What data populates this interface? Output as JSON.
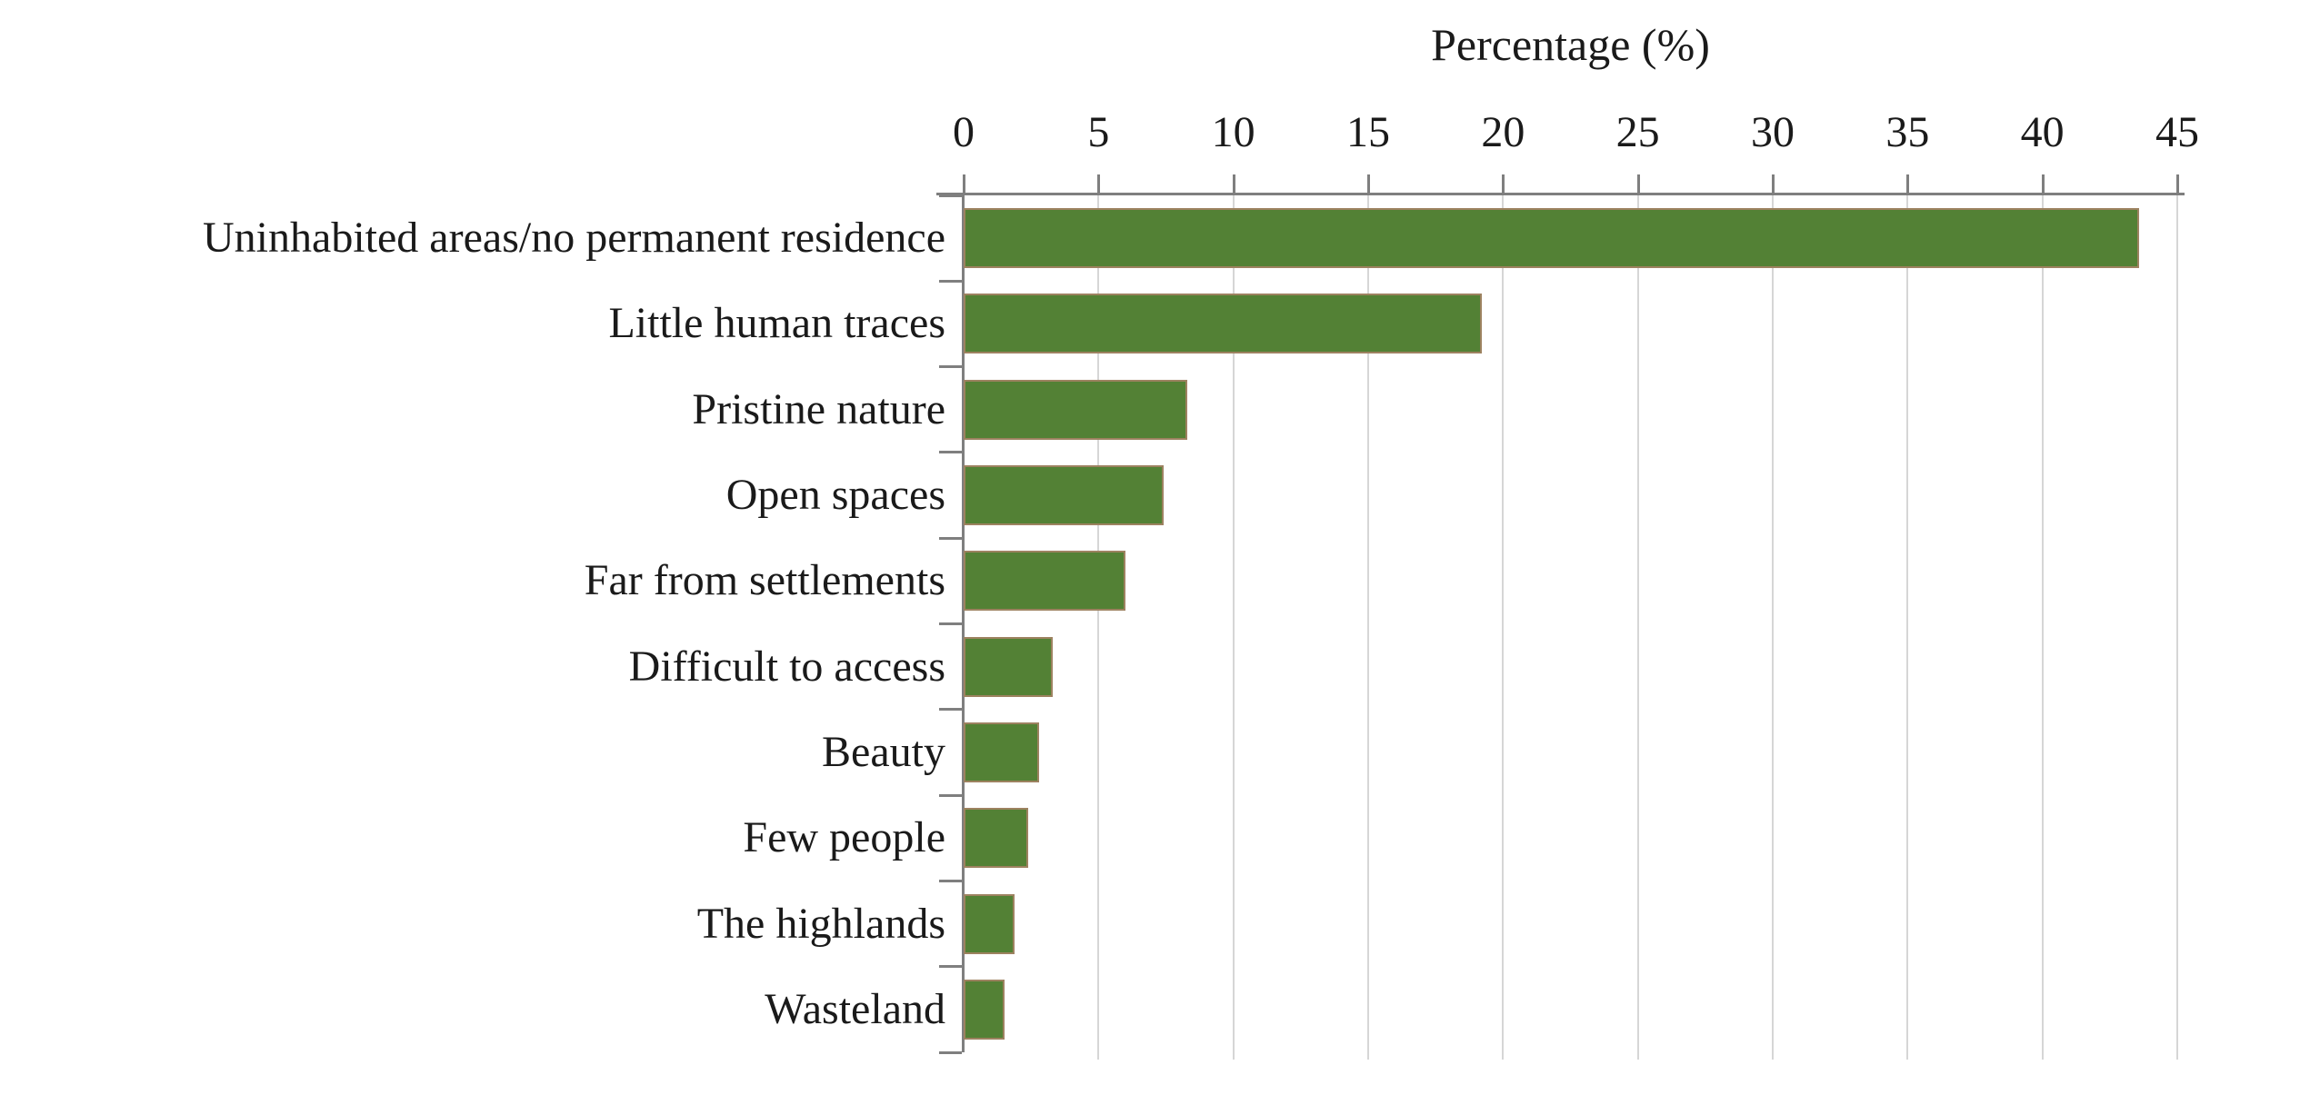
{
  "chart_data": {
    "type": "bar",
    "orientation": "horizontal",
    "title": "Percentage (%)",
    "xlabel": "Percentage (%)",
    "ylabel": "",
    "categories": [
      "Uninhabited areas/no permanent residence",
      "Little human traces",
      "Pristine nature",
      "Open spaces",
      "Far from settlements",
      "Difficult to access",
      "Beauty",
      "Few people",
      "The highlands",
      "Wasteland"
    ],
    "values": [
      43.6,
      19.2,
      8.3,
      7.4,
      6.0,
      3.3,
      2.8,
      2.4,
      1.9,
      1.5
    ],
    "xlim": [
      0,
      45
    ],
    "xticks": [
      0,
      5,
      10,
      15,
      20,
      25,
      30,
      35,
      40,
      45
    ],
    "grid": true,
    "legend": false,
    "colors": {
      "bar_fill": "#538135",
      "bar_border": "#9d8260",
      "axis": "#7f7f7f",
      "gridline": "#d6d6d6",
      "text": "#1a1a1a"
    }
  }
}
